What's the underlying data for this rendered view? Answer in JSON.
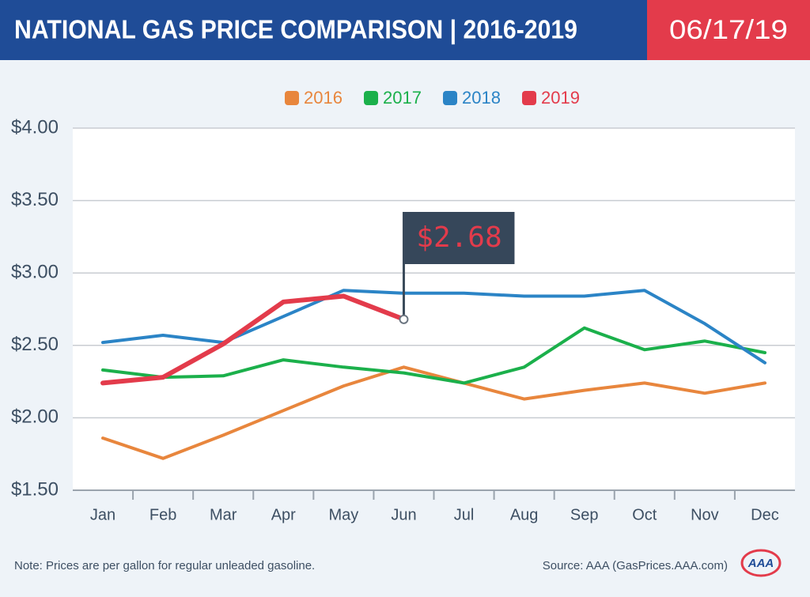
{
  "chart_data": {
    "type": "line",
    "title": "NATIONAL GAS PRICE COMPARISON | 2016-2019",
    "date": "06/17/19",
    "categories": [
      "Jan",
      "Feb",
      "Mar",
      "Apr",
      "May",
      "Jun",
      "Jul",
      "Aug",
      "Sep",
      "Oct",
      "Nov",
      "Dec"
    ],
    "series": [
      {
        "name": "2016",
        "color": "#e8863d",
        "values": [
          1.86,
          1.72,
          1.88,
          2.05,
          2.22,
          2.35,
          2.24,
          2.13,
          2.19,
          2.24,
          2.17,
          2.24
        ]
      },
      {
        "name": "2017",
        "color": "#1bb04b",
        "values": [
          2.33,
          2.28,
          2.29,
          2.4,
          2.35,
          2.31,
          2.24,
          2.35,
          2.62,
          2.47,
          2.53,
          2.45
        ]
      },
      {
        "name": "2018",
        "color": "#2b84c6",
        "values": [
          2.52,
          2.57,
          2.52,
          2.7,
          2.88,
          2.86,
          2.86,
          2.84,
          2.84,
          2.88,
          2.65,
          2.38
        ]
      },
      {
        "name": "2019",
        "color": "#e33b4b",
        "values": [
          2.24,
          2.28,
          2.51,
          2.8,
          2.84,
          2.68,
          null,
          null,
          null,
          null,
          null,
          null
        ]
      }
    ],
    "annotation": "$2.68",
    "ylim": [
      1.5,
      4.0
    ],
    "yticks": [
      {
        "value": 1.5,
        "label": "$1.50"
      },
      {
        "value": 2.0,
        "label": "$2.00"
      },
      {
        "value": 2.5,
        "label": "$2.50"
      },
      {
        "value": 3.0,
        "label": "$3.00"
      },
      {
        "value": 3.5,
        "label": "$3.50"
      },
      {
        "value": 4.0,
        "label": "$4.00"
      }
    ],
    "grid": true,
    "note": "Note: Prices are per gallon for regular unleaded gasoline.",
    "source": "Source: AAA (GasPrices.AAA.com)"
  }
}
